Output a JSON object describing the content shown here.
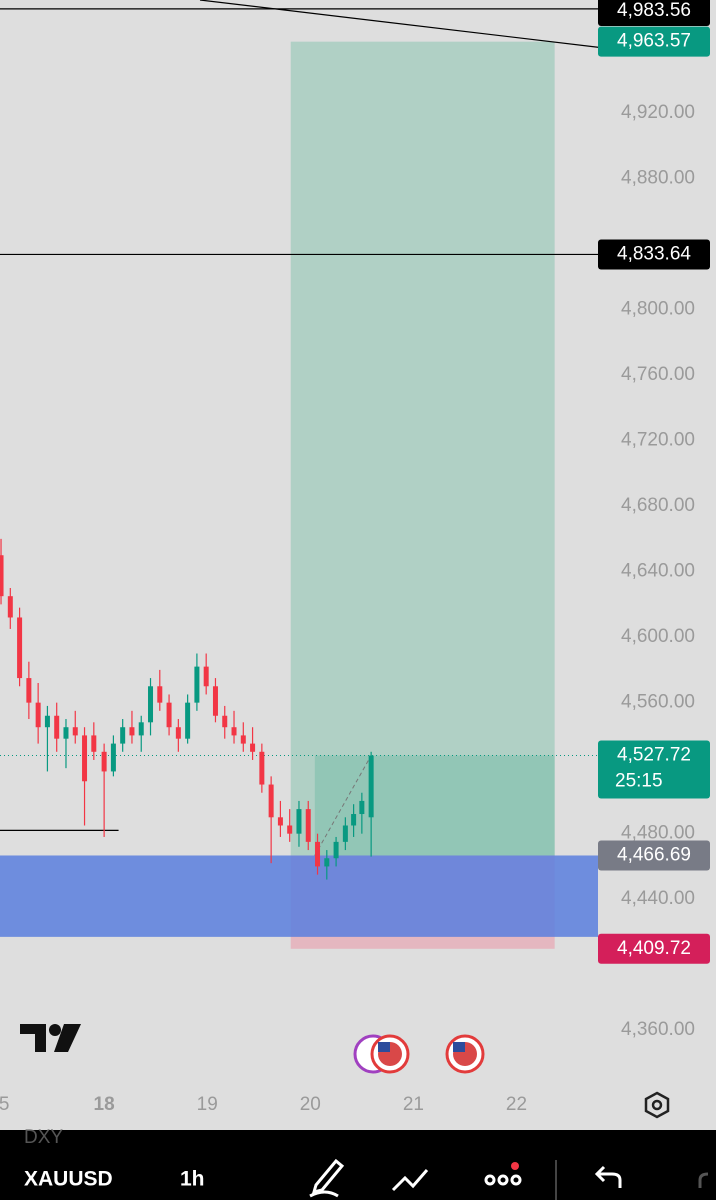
{
  "chart_data": {
    "type": "candlestick",
    "symbol": "XAUUSD",
    "interval": "1h",
    "indicator": "DXY",
    "x": [
      17.0,
      17.09,
      17.18,
      17.27,
      17.36,
      17.45,
      17.54,
      17.63,
      17.72,
      17.81,
      17.9,
      18.0,
      18.09,
      18.18,
      18.27,
      18.36,
      18.45,
      18.54,
      18.63,
      18.72,
      18.81,
      18.9,
      18.99,
      19.08,
      19.17,
      19.26,
      19.35,
      19.44,
      19.53,
      19.62,
      19.71,
      19.8,
      19.89,
      19.98,
      20.07,
      20.16,
      20.25,
      20.34,
      20.42,
      20.5,
      20.59
    ],
    "open": [
      4650,
      4625,
      4612,
      4575,
      4560,
      4545,
      4552,
      4538,
      4545,
      4540,
      4540,
      4530,
      4518,
      4535,
      4545,
      4540,
      4548,
      4570,
      4560,
      4545,
      4538,
      4560,
      4582,
      4570,
      4552,
      4545,
      4540,
      4535,
      4530,
      4510,
      4490,
      4485,
      4480,
      4495,
      4475,
      4460,
      4465,
      4475,
      4485,
      4492,
      4490
    ],
    "high": [
      4660,
      4630,
      4618,
      4585,
      4572,
      4558,
      4560,
      4550,
      4555,
      4545,
      4548,
      4535,
      4540,
      4550,
      4555,
      4552,
      4575,
      4580,
      4565,
      4550,
      4565,
      4590,
      4590,
      4575,
      4558,
      4555,
      4548,
      4545,
      4535,
      4515,
      4500,
      4495,
      4500,
      4500,
      4480,
      4470,
      4478,
      4490,
      4498,
      4505,
      4530
    ],
    "low": [
      4620,
      4605,
      4570,
      4550,
      4535,
      4518,
      4530,
      4520,
      4535,
      4485,
      4525,
      4478,
      4515,
      4530,
      4535,
      4530,
      4540,
      4555,
      4540,
      4530,
      4535,
      4555,
      4565,
      4548,
      4538,
      4535,
      4530,
      4525,
      4505,
      4462,
      4478,
      4475,
      4472,
      4470,
      4455,
      4452,
      4460,
      4470,
      4478,
      4480,
      4466
    ],
    "close": [
      4625,
      4612,
      4575,
      4560,
      4545,
      4552,
      4538,
      4545,
      4540,
      4512,
      4530,
      4518,
      4535,
      4545,
      4540,
      4548,
      4570,
      4560,
      4545,
      4538,
      4560,
      4582,
      4570,
      4552,
      4545,
      4540,
      4535,
      4530,
      4510,
      4490,
      4485,
      4480,
      4495,
      4475,
      4460,
      4465,
      4475,
      4485,
      4492,
      4500,
      4527.72
    ],
    "up_color": "#089981",
    "down_color": "#f23645",
    "xlim": [
      16.99,
      22.81
    ],
    "xticks": [
      {
        "value": 17.03,
        "label": "5"
      },
      18,
      19,
      20,
      21,
      22
    ],
    "ylim": [
      4329,
      4989
    ],
    "yticks": [
      {
        "value": 4360,
        "label": "4,360.00"
      },
      {
        "value": 4440,
        "label": "4,440.00"
      },
      {
        "value": 4480,
        "label": "4,480.00"
      },
      {
        "value": 4560,
        "label": "4,560.00"
      },
      {
        "value": 4600,
        "label": "4,600.00"
      },
      {
        "value": 4640,
        "label": "4,640.00"
      },
      {
        "value": 4680,
        "label": "4,680.00"
      },
      {
        "value": 4720,
        "label": "4,720.00"
      },
      {
        "value": 4760,
        "label": "4,760.00"
      },
      {
        "value": 4800,
        "label": "4,800.00"
      },
      {
        "value": 4880,
        "label": "4,880.00"
      },
      {
        "value": 4920,
        "label": "4,920.00"
      }
    ],
    "last_price": {
      "value": 4527.72,
      "label": "4,527.72",
      "countdown": "25:15"
    },
    "price_lines": [
      {
        "value": 4983.56,
        "label": "4,983.56"
      },
      {
        "value": 4833.64,
        "label": "4,833.64"
      }
    ],
    "long_position": {
      "x": [
        19.81,
        22.37
      ],
      "entry": {
        "value": 4466.69,
        "label": "4,466.69"
      },
      "target": {
        "value": 4963.57,
        "label": "4,963.57"
      },
      "stop": {
        "value": 4409.72,
        "label": "4,409.72"
      }
    },
    "zone": {
      "low": 4417,
      "high": 4466.69,
      "color": "#5b7fde"
    },
    "trend_line": {
      "x": [
        18.93,
        22.81
      ],
      "y": [
        4989,
        4960
      ]
    },
    "short_line": {
      "x": [
        16.99,
        18.14
      ],
      "y": 4482
    }
  }
}
